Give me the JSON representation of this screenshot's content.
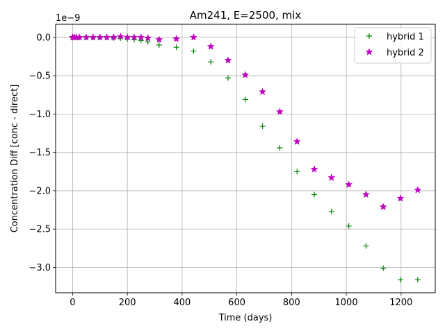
{
  "chart_data": {
    "type": "scatter",
    "title": "Am241, E=2500, mix",
    "xlabel": "Time (days)",
    "ylabel": "Concentration Diff [conc - direct]",
    "offset_text": "1e−9",
    "xlim": [
      -62,
      1325
    ],
    "ylim": [
      -3.33,
      0.17
    ],
    "xticks": [
      0,
      200,
      400,
      600,
      800,
      1000,
      1200
    ],
    "xtick_labels": [
      "0",
      "200",
      "400",
      "600",
      "800",
      "1000",
      "1200"
    ],
    "yticks": [
      0.0,
      -0.5,
      -1.0,
      -1.5,
      -2.0,
      -2.5,
      -3.0
    ],
    "ytick_labels": [
      "0.0",
      "−0.5",
      "−1.0",
      "−1.5",
      "−2.0",
      "−2.5",
      "−3.0"
    ],
    "grid": true,
    "legend_position": "top-right",
    "series": [
      {
        "name": "hybrid 1",
        "marker": "plus",
        "color": "#008000",
        "points": [
          [
            0,
            0.0
          ],
          [
            6,
            0.0
          ],
          [
            13,
            0.0
          ],
          [
            25,
            0.0
          ],
          [
            50,
            0.0
          ],
          [
            75,
            0.0
          ],
          [
            100,
            0.0
          ],
          [
            125,
            0.0
          ],
          [
            150,
            -0.01
          ],
          [
            175,
            -0.01
          ],
          [
            200,
            -0.02
          ],
          [
            225,
            -0.03
          ],
          [
            250,
            -0.04
          ],
          [
            275,
            -0.06
          ],
          [
            316,
            -0.1
          ],
          [
            379,
            -0.13
          ],
          [
            442,
            -0.18
          ],
          [
            505,
            -0.32
          ],
          [
            568,
            -0.53
          ],
          [
            631,
            -0.81
          ],
          [
            694,
            -1.16
          ],
          [
            757,
            -1.44
          ],
          [
            820,
            -1.75
          ],
          [
            883,
            -2.05
          ],
          [
            946,
            -2.27
          ],
          [
            1009,
            -2.46
          ],
          [
            1072,
            -2.72
          ],
          [
            1135,
            -3.01
          ],
          [
            1198,
            -3.16
          ],
          [
            1261,
            -3.16
          ]
        ]
      },
      {
        "name": "hybrid 2",
        "marker": "star",
        "color": "#bf00bf",
        "points": [
          [
            0,
            0.0
          ],
          [
            6,
            0.0
          ],
          [
            13,
            0.0
          ],
          [
            25,
            0.0
          ],
          [
            50,
            0.0
          ],
          [
            75,
            0.0
          ],
          [
            100,
            0.0
          ],
          [
            125,
            0.0
          ],
          [
            150,
            0.0
          ],
          [
            175,
            0.01
          ],
          [
            200,
            0.0
          ],
          [
            225,
            0.0
          ],
          [
            250,
            0.0
          ],
          [
            275,
            -0.01
          ],
          [
            316,
            -0.03
          ],
          [
            379,
            -0.02
          ],
          [
            442,
            0.0
          ],
          [
            505,
            -0.12
          ],
          [
            568,
            -0.3
          ],
          [
            631,
            -0.49
          ],
          [
            694,
            -0.71
          ],
          [
            757,
            -0.97
          ],
          [
            820,
            -1.36
          ],
          [
            883,
            -1.72
          ],
          [
            946,
            -1.83
          ],
          [
            1009,
            -1.92
          ],
          [
            1072,
            -2.05
          ],
          [
            1135,
            -2.21
          ],
          [
            1198,
            -2.1
          ],
          [
            1261,
            -1.99
          ]
        ]
      }
    ]
  }
}
